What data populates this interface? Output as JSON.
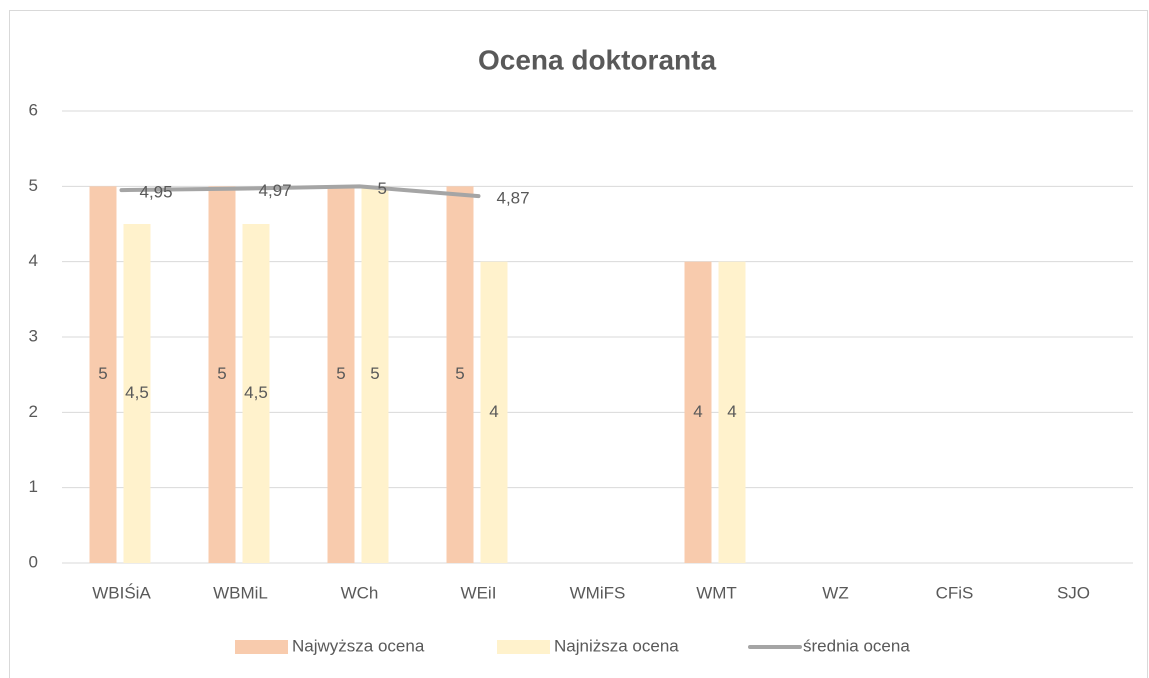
{
  "chart_data": {
    "type": "bar",
    "title": "Ocena doktoranta",
    "categories": [
      "WBIŚiA",
      "WBMiL",
      "WCh",
      "WEiI",
      "WMiFS",
      "WMT",
      "WZ",
      "CFiS",
      "SJO"
    ],
    "series": [
      {
        "name": "Najwyższa ocena",
        "color": "#f8cbad",
        "type": "bar",
        "values": [
          5,
          5,
          5,
          5,
          null,
          4,
          null,
          null,
          null
        ]
      },
      {
        "name": "Najniższa ocena",
        "color": "#fff2cc",
        "type": "bar",
        "values": [
          4.5,
          4.5,
          5,
          4,
          null,
          4,
          null,
          null,
          null
        ],
        "value_labels": [
          "4,5",
          "4,5",
          "5",
          "4",
          null,
          "4",
          null,
          null,
          null
        ]
      },
      {
        "name": "średnia ocena",
        "color": "#a5a5a5",
        "type": "line",
        "values": [
          4.95,
          4.97,
          5,
          4.87,
          null,
          null,
          null,
          null,
          null
        ],
        "value_labels": [
          "4,95",
          "4,97",
          "5",
          "4,87",
          null,
          null,
          null,
          null,
          null
        ]
      }
    ],
    "ylim": [
      0,
      6
    ],
    "yticks": [
      0,
      1,
      2,
      3,
      4,
      5,
      6
    ],
    "grid": true,
    "legend": "bottom"
  }
}
